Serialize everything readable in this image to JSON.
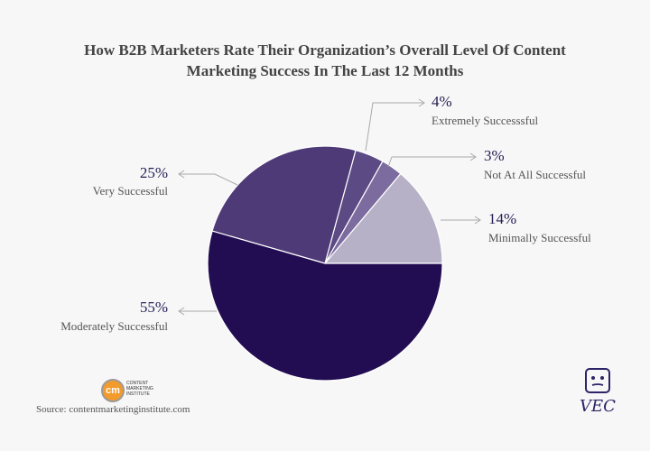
{
  "title_lines": [
    "How B2B Marketers Rate Their Organization’s Overall Level Of  Content",
    "Marketing Success In The Last 12 Months"
  ],
  "chart_data": {
    "type": "pie",
    "title": "How B2B Marketers Rate Their Organization’s Overall Level Of  Content Marketing Success In The Last 12 Months",
    "start_angle_deg": 0,
    "direction": "counterclockwise",
    "slices": [
      {
        "label": "Minimally Successful",
        "value": 14,
        "display": "14%",
        "color": "#b7b1c8"
      },
      {
        "label": "Not At All Successful",
        "value": 3,
        "display": "3%",
        "color": "#7c6b9e"
      },
      {
        "label": "Extremely Successsful",
        "value": 4,
        "display": "4%",
        "color": "#5c4a84"
      },
      {
        "label": "Very Successful",
        "value": 25,
        "display": "25%",
        "color": "#4d3a77"
      },
      {
        "label": "Moderately Successful",
        "value": 55,
        "display": "55%",
        "color": "#230d52"
      }
    ]
  },
  "source": "Source: contentmarketinginstitute.com",
  "logo": {
    "badge": "cm",
    "lines": [
      "CONTENT",
      "MARKETING",
      "INSTITUTE"
    ]
  },
  "brand": {
    "icon": "robot-face-icon",
    "text": "VEC"
  }
}
